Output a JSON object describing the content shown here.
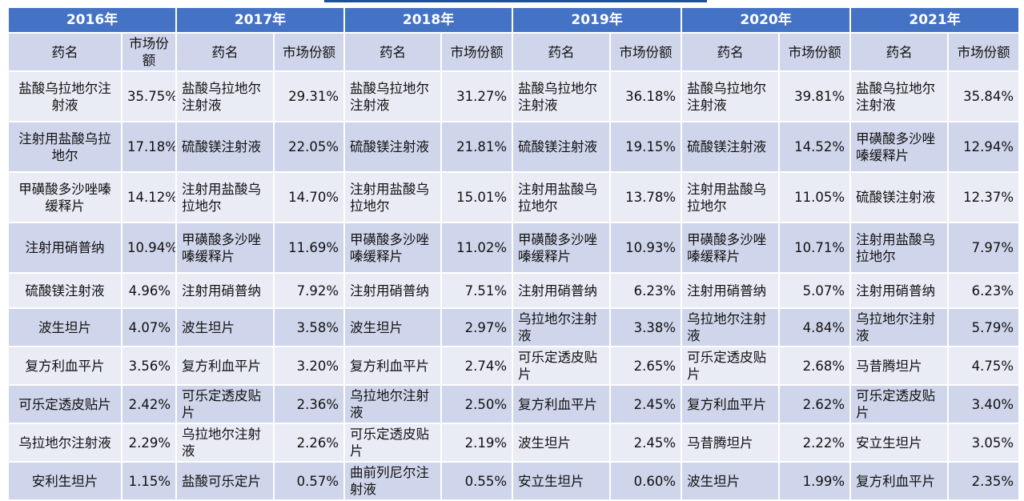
{
  "table": {
    "name_header": "药名",
    "share_header": "市场份额",
    "years": [
      {
        "year": "2016年",
        "rows": [
          [
            "盐酸乌拉地尔注射液",
            "35.75%"
          ],
          [
            "注射用盐酸乌拉地尔",
            "17.18%"
          ],
          [
            "甲磺酸多沙唑嗪缓释片",
            "14.12%"
          ],
          [
            "注射用硝普纳",
            "10.94%"
          ],
          [
            "硫酸镁注射液",
            "4.96%"
          ],
          [
            "波生坦片",
            "4.07%"
          ],
          [
            "复方利血平片",
            "3.56%"
          ],
          [
            "可乐定透皮贴片",
            "2.42%"
          ],
          [
            "乌拉地尔注射液",
            "2.29%"
          ],
          [
            "安利生坦片",
            "1.15%"
          ]
        ]
      },
      {
        "year": "2017年",
        "rows": [
          [
            "盐酸乌拉地尔注射液",
            "29.31%"
          ],
          [
            "硫酸镁注射液",
            "22.05%"
          ],
          [
            "注射用盐酸乌拉地尔",
            "14.70%"
          ],
          [
            "甲磺酸多沙唑嗪缓释片",
            "11.69%"
          ],
          [
            "注射用硝普纳",
            "7.92%"
          ],
          [
            "波生坦片",
            "3.58%"
          ],
          [
            "复方利血平片",
            "3.20%"
          ],
          [
            "可乐定透皮贴片",
            "2.36%"
          ],
          [
            "乌拉地尔注射液",
            "2.26%"
          ],
          [
            "盐酸可乐定片",
            "0.57%"
          ]
        ]
      },
      {
        "year": "2018年",
        "rows": [
          [
            "盐酸乌拉地尔注射液",
            "31.27%"
          ],
          [
            "硫酸镁注射液",
            "21.81%"
          ],
          [
            "注射用盐酸乌拉地尔",
            "15.01%"
          ],
          [
            "甲磺酸多沙唑嗪缓释片",
            "11.02%"
          ],
          [
            "注射用硝普纳",
            "7.51%"
          ],
          [
            "波生坦片",
            "2.97%"
          ],
          [
            "复方利血平片",
            "2.74%"
          ],
          [
            "乌拉地尔注射液",
            "2.50%"
          ],
          [
            "可乐定透皮贴片",
            "2.19%"
          ],
          [
            "曲前列尼尔注射液",
            "0.55%"
          ]
        ]
      },
      {
        "year": "2019年",
        "rows": [
          [
            "盐酸乌拉地尔注射液",
            "36.18%"
          ],
          [
            "硫酸镁注射液",
            "19.15%"
          ],
          [
            "注射用盐酸乌拉地尔",
            "13.78%"
          ],
          [
            "甲磺酸多沙唑嗪缓释片",
            "10.93%"
          ],
          [
            "注射用硝普纳",
            "6.23%"
          ],
          [
            "乌拉地尔注射液",
            "3.38%"
          ],
          [
            "可乐定透皮贴片",
            "2.65%"
          ],
          [
            "复方利血平片",
            "2.45%"
          ],
          [
            "波生坦片",
            "2.45%"
          ],
          [
            "安立生坦片",
            "0.60%"
          ]
        ]
      },
      {
        "year": "2020年",
        "rows": [
          [
            "盐酸乌拉地尔注射液",
            "39.81%"
          ],
          [
            "硫酸镁注射液",
            "14.52%"
          ],
          [
            "注射用盐酸乌拉地尔",
            "11.05%"
          ],
          [
            "甲磺酸多沙唑嗪缓释片",
            "10.71%"
          ],
          [
            "注射用硝普纳",
            "5.07%"
          ],
          [
            "乌拉地尔注射液",
            "4.84%"
          ],
          [
            "可乐定透皮贴片",
            "2.68%"
          ],
          [
            "复方利血平片",
            "2.62%"
          ],
          [
            "马昔腾坦片",
            "2.22%"
          ],
          [
            "波生坦片",
            "1.99%"
          ]
        ]
      },
      {
        "year": "2021年",
        "rows": [
          [
            "盐酸乌拉地尔注射液",
            "35.84%"
          ],
          [
            "甲磺酸多沙唑嗪缓释片",
            "12.94%"
          ],
          [
            "硫酸镁注射液",
            "12.37%"
          ],
          [
            "注射用盐酸乌拉地尔",
            "7.97%"
          ],
          [
            "注射用硝普纳",
            "6.23%"
          ],
          [
            "乌拉地尔注射液",
            "5.79%"
          ],
          [
            "马昔腾坦片",
            "4.75%"
          ],
          [
            "可乐定透皮贴片",
            "3.40%"
          ],
          [
            "安立生坦片",
            "3.05%"
          ],
          [
            "复方利血平片",
            "2.35%"
          ]
        ]
      }
    ]
  }
}
